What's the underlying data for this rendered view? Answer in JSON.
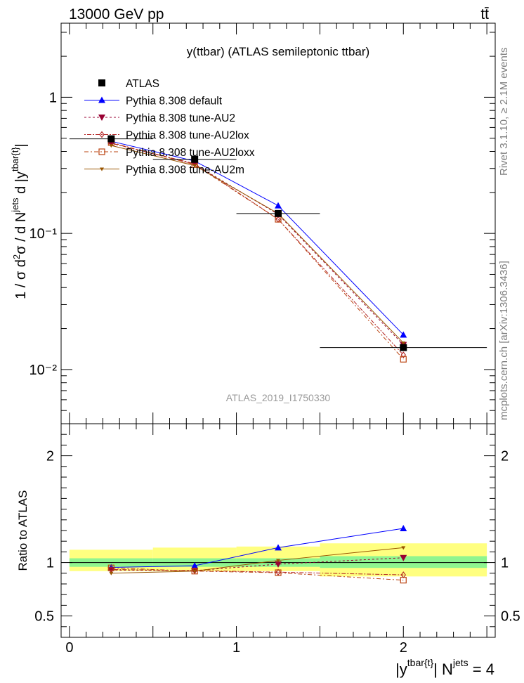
{
  "header": {
    "energy": "13000 GeV pp",
    "process": "tt̄"
  },
  "side_labels": {
    "rivet": "Rivet 3.1.10, ≥ 2.1M events",
    "source": "mcplots.cern.ch [arXiv:1306.3436]"
  },
  "watermark": "ATLAS_2019_I1750330",
  "chart_data": [
    {
      "type": "line",
      "title": "y(ttbar) (ATLAS semileptonic ttbar)",
      "xlabel": "|y^{tbar{t}}| N^{jets} = 4",
      "ylabel": "1 / σ d²σ / d N^{jets} d |y^{tbar{t}}|",
      "yscale": "log",
      "xlim": [
        -0.05,
        2.55
      ],
      "ylim": [
        0.004,
        3.5
      ],
      "y_ticks": [
        {
          "value": 0.01,
          "label": "10⁻²"
        },
        {
          "value": 0.1,
          "label": "10⁻¹"
        },
        {
          "value": 1,
          "label": "1"
        }
      ],
      "x": [
        0.25,
        0.75,
        1.25,
        2.0
      ],
      "data": {
        "name": "ATLAS",
        "x": [
          0.25,
          0.75,
          1.25,
          2.0
        ],
        "xerr": [
          [
            0,
            0.5
          ],
          [
            0.5,
            1.0
          ],
          [
            1.0,
            1.5
          ],
          [
            1.5,
            2.5
          ]
        ],
        "values": [
          0.495,
          0.35,
          0.14,
          0.0145
        ],
        "color": "#000000"
      },
      "series": [
        {
          "name": "Pythia 8.308 default",
          "values": [
            0.475,
            0.34,
            0.16,
            0.018
          ],
          "color": "#0000ff",
          "marker": "triangle-up",
          "dash": ""
        },
        {
          "name": "Pythia 8.308 tune-AU2",
          "values": [
            0.46,
            0.322,
            0.138,
            0.0152
          ],
          "color": "#990033",
          "marker": "triangle-down",
          "dash": "3,3"
        },
        {
          "name": "Pythia 8.308 tune-AU2lox",
          "values": [
            0.46,
            0.325,
            0.127,
            0.0128
          ],
          "color": "#b22222",
          "marker": "diamond-open",
          "dash": "2,2,6,2"
        },
        {
          "name": "Pythia 8.308 tune-AU2loxx",
          "values": [
            0.465,
            0.32,
            0.127,
            0.0119
          ],
          "color": "#bb4411",
          "marker": "square-open",
          "dash": "6,3,2,3"
        },
        {
          "name": "Pythia 8.308 tune-AU2m",
          "values": [
            0.442,
            0.315,
            0.14,
            0.0157
          ],
          "color": "#995500",
          "marker": "triangle-down-small",
          "dash": ""
        }
      ],
      "legend": "top-left"
    },
    {
      "type": "line",
      "ylabel": "Ratio to ATLAS",
      "xlim": [
        -0.05,
        2.55
      ],
      "ylim": [
        0.3,
        2.3
      ],
      "y_ticks": [
        {
          "value": 0.5,
          "label": "0.5"
        },
        {
          "value": 1,
          "label": "1"
        },
        {
          "value": 2,
          "label": "2"
        }
      ],
      "x_ticks": [
        {
          "value": 0,
          "label": "0"
        },
        {
          "value": 1,
          "label": "1"
        },
        {
          "value": 2,
          "label": "2"
        }
      ],
      "bands": [
        {
          "x": [
            0.0,
            0.5
          ],
          "inner": [
            0.96,
            1.04
          ],
          "outer": [
            0.92,
            1.12
          ]
        },
        {
          "x": [
            0.5,
            1.0
          ],
          "inner": [
            0.96,
            1.04
          ],
          "outer": [
            0.92,
            1.14
          ]
        },
        {
          "x": [
            1.0,
            1.5
          ],
          "inner": [
            0.96,
            1.04
          ],
          "outer": [
            0.92,
            1.15
          ]
        },
        {
          "x": [
            1.5,
            2.5
          ],
          "inner": [
            0.95,
            1.06
          ],
          "outer": [
            0.87,
            1.18
          ]
        }
      ],
      "series": [
        {
          "name": "Pythia 8.308 default",
          "values": [
            0.955,
            0.97,
            1.14,
            1.32
          ]
        },
        {
          "name": "Pythia 8.308 tune-AU2",
          "values": [
            0.93,
            0.925,
            0.985,
            1.045
          ]
        },
        {
          "name": "Pythia 8.308 tune-AU2lox",
          "values": [
            0.935,
            0.925,
            0.91,
            0.885
          ]
        },
        {
          "name": "Pythia 8.308 tune-AU2loxx",
          "values": [
            0.95,
            0.92,
            0.905,
            0.835
          ]
        },
        {
          "name": "Pythia 8.308 tune-AU2m",
          "values": [
            0.9,
            0.92,
            1.02,
            1.14
          ]
        }
      ]
    }
  ]
}
